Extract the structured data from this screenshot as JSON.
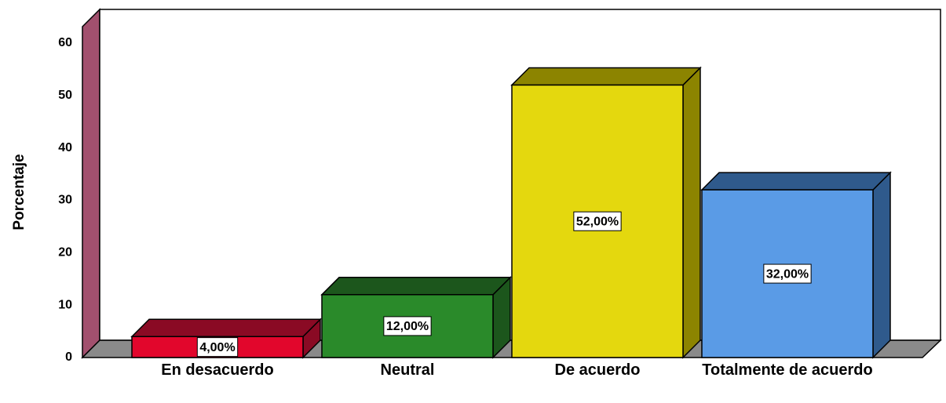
{
  "chart_data": {
    "type": "bar3d",
    "y_label": "Porcentaje",
    "categories": [
      "En desacuerdo",
      "Neutral",
      "De acuerdo",
      "Totalmente de acuerdo"
    ],
    "values": [
      4,
      12,
      52,
      32
    ],
    "value_labels": [
      "4,00%",
      "12,00%",
      "52,00%",
      "32,00%"
    ],
    "colors": [
      "#e2062c",
      "#2a8a2a",
      "#e4d80e",
      "#5a9be6"
    ],
    "shade_colors": [
      "#8a0a24",
      "#1c561c",
      "#8c8400",
      "#2f5a8c"
    ],
    "ylim": [
      0,
      60
    ],
    "yticks": [
      0,
      10,
      20,
      30,
      40,
      50,
      60
    ],
    "grid": false
  }
}
